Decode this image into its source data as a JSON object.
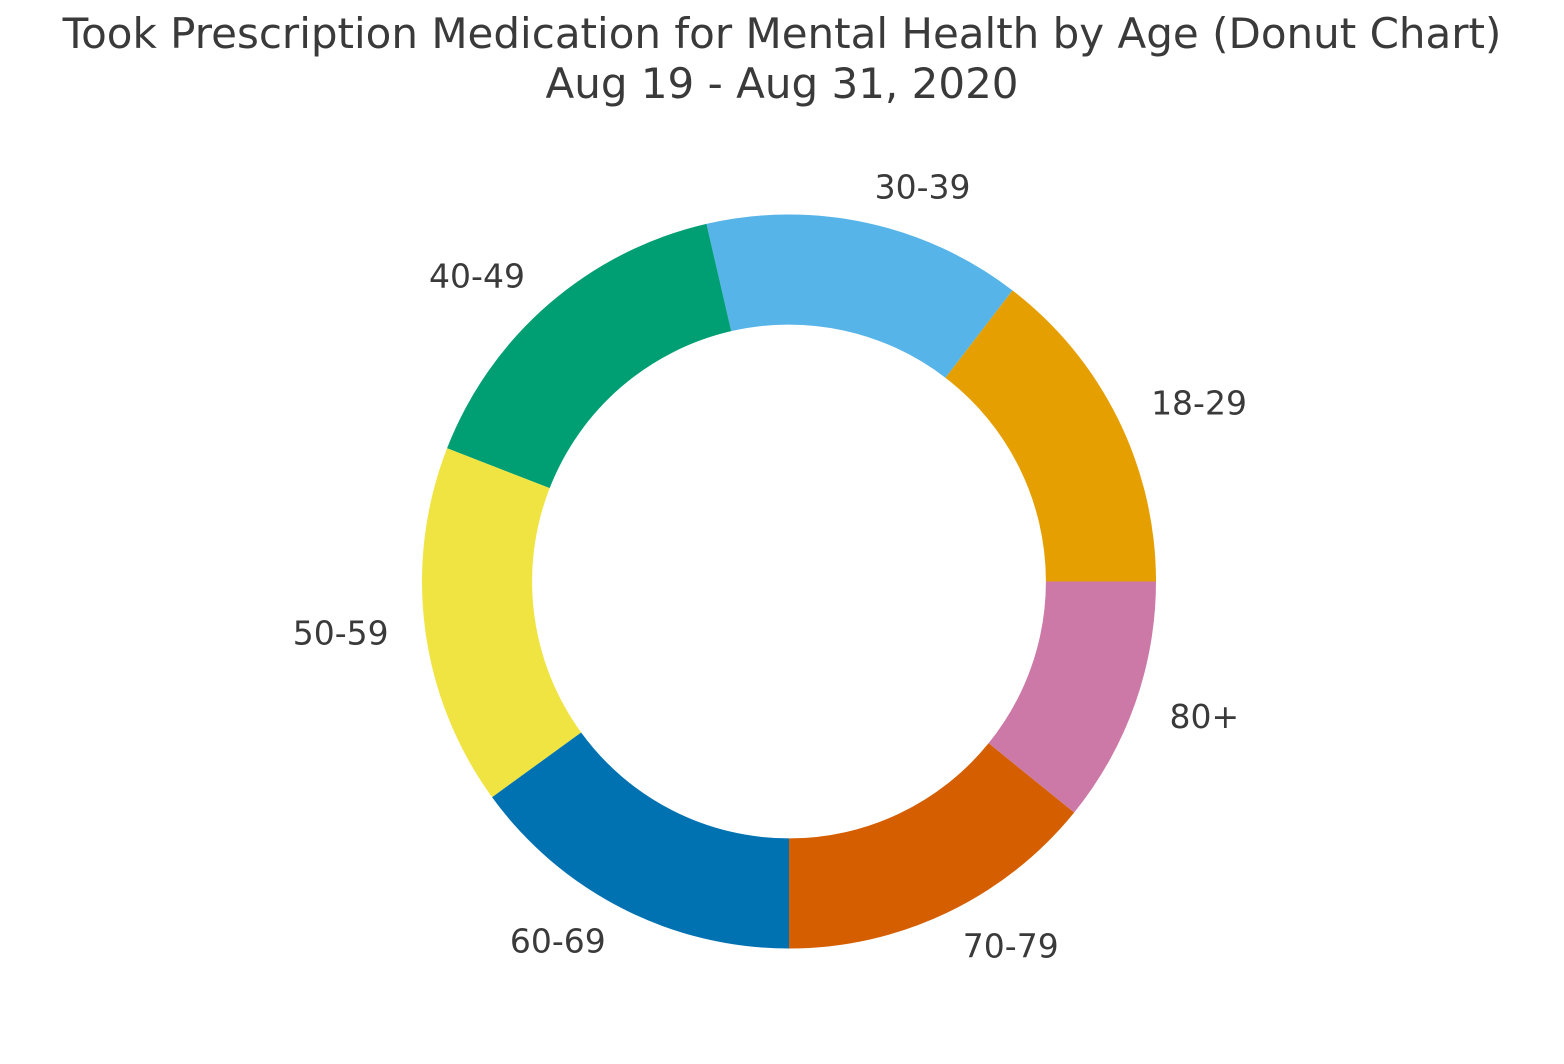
{
  "chart_data": {
    "type": "pie",
    "variant": "donut",
    "title": "Took Prescription Medication for Mental Health by Age (Donut Chart)",
    "subtitle": "Aug 19 - Aug 31, 2020",
    "categories": [
      "18-29",
      "30-39",
      "40-49",
      "50-59",
      "60-69",
      "70-79",
      "80+"
    ],
    "segment_angles_deg": [
      52.5,
      50.5,
      55.7,
      57.3,
      54.0,
      51.0,
      39.0
    ],
    "values_percent_share": [
      14.6,
      14.0,
      15.5,
      15.9,
      15.0,
      14.2,
      10.8
    ],
    "colors": [
      "#E69F00",
      "#56B4E9",
      "#009E73",
      "#F0E442",
      "#0072B2",
      "#D55E00",
      "#CC79A7"
    ],
    "layout": {
      "start_angle_deg": 0,
      "direction": "counterclockwise",
      "donut_hole_ratio": 0.7,
      "label_distance_ratio": 1.1,
      "legend": "none",
      "background_color": "#FFFFFF",
      "text_color": "#3A3A3A"
    }
  }
}
